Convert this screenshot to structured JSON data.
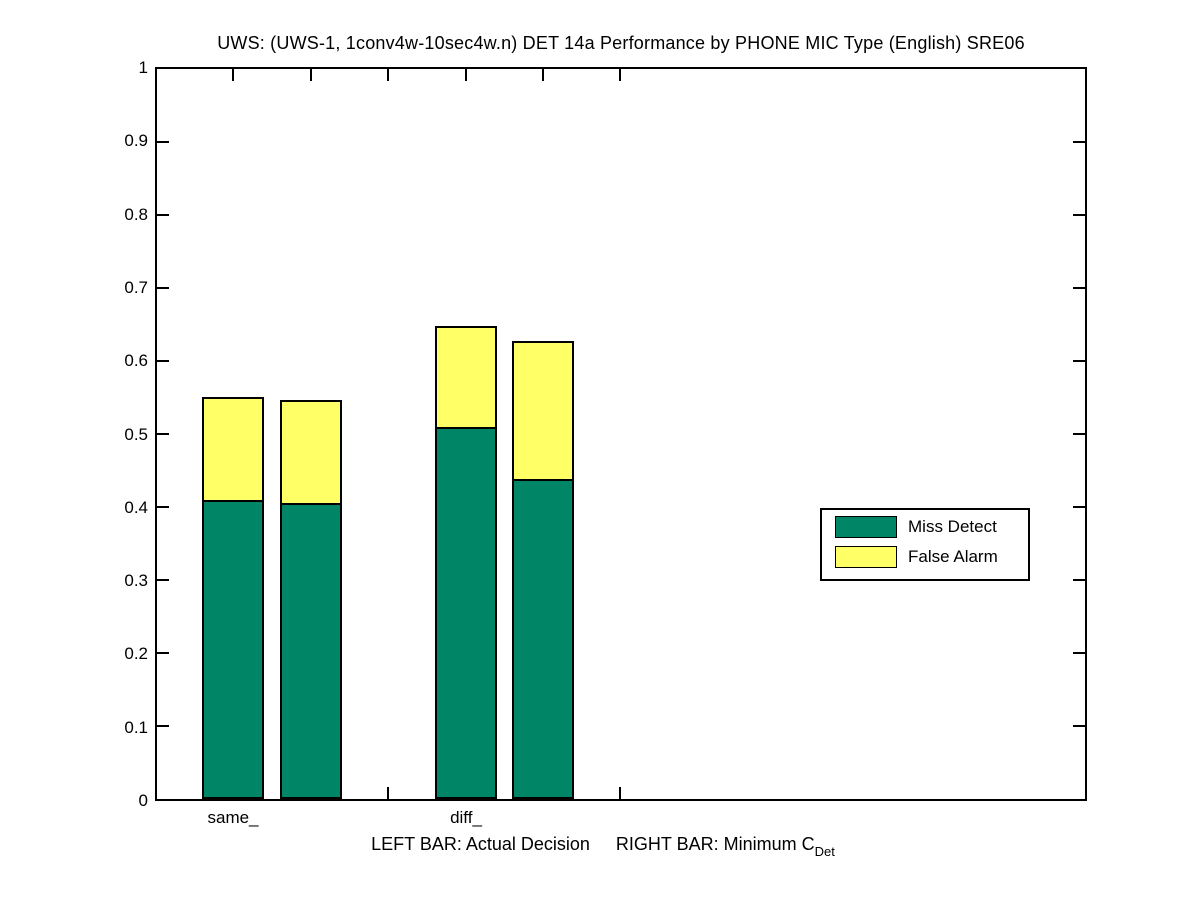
{
  "title": "UWS: (UWS-1, 1conv4w-10sec4w.n) DET 14a Performance by PHONE MIC Type (English) SRE06",
  "chart_data": {
    "type": "bar",
    "stacked": true,
    "title": "UWS: (UWS-1, 1conv4w-10sec4w.n) DET 14a Performance by PHONE MIC Type (English) SRE06",
    "categories": [
      "same_",
      "diff_"
    ],
    "bar_roles": [
      "Actual Decision",
      "Minimum C_Det"
    ],
    "series": [
      {
        "name": "Miss Detect",
        "color": "#008566",
        "values": [
          0.41,
          0.405,
          0.509,
          0.438
        ]
      },
      {
        "name": "False Alarm",
        "color": "#FFFF66",
        "values": [
          0.14,
          0.141,
          0.139,
          0.189
        ]
      }
    ],
    "bars": [
      {
        "category": "same_",
        "role": "Actual Decision",
        "miss_detect": 0.41,
        "false_alarm": 0.14,
        "total": 0.55
      },
      {
        "category": "same_",
        "role": "Minimum C_Det",
        "miss_detect": 0.405,
        "false_alarm": 0.141,
        "total": 0.546
      },
      {
        "category": "diff_",
        "role": "Actual Decision",
        "miss_detect": 0.509,
        "false_alarm": 0.139,
        "total": 0.648
      },
      {
        "category": "diff_",
        "role": "Minimum C_Det",
        "miss_detect": 0.438,
        "false_alarm": 0.189,
        "total": 0.627
      }
    ],
    "ylim": [
      0,
      1
    ],
    "y_ticks": [
      "0",
      "0.1",
      "0.2",
      "0.3",
      "0.4",
      "0.5",
      "0.6",
      "0.7",
      "0.8",
      "0.9",
      "1"
    ],
    "xlabel": "LEFT BAR: Actual Decision      RIGHT BAR: Minimum C_Det",
    "ylabel": "",
    "grid": false,
    "legend_position": "right-middle"
  },
  "legend": {
    "items": [
      {
        "label": "Miss Detect",
        "color": "#008566"
      },
      {
        "label": "False Alarm",
        "color": "#FFFF66"
      }
    ]
  },
  "x_labels": {
    "same": "same_",
    "diff": "diff_"
  },
  "footnote": {
    "left": "LEFT BAR: Actual Decision",
    "right": "RIGHT BAR: Minimum C",
    "right_subscript": "Det"
  },
  "colors": {
    "axis": "#000000",
    "background": "#FFFFFF"
  }
}
